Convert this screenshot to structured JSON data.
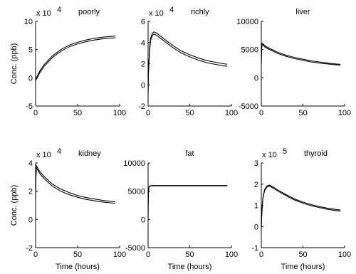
{
  "chart_data": [
    {
      "type": "line",
      "title": "poorly",
      "xlabel": "",
      "ylabel": "Conc. (ppb)",
      "multiplier_label": "x 10",
      "exponent": "4",
      "xlim": [
        0,
        100
      ],
      "ylim": [
        -5,
        10
      ],
      "xticks": [
        "0",
        "50",
        "100"
      ],
      "yticks": [
        "-5",
        "0",
        "5",
        "10"
      ],
      "x": [
        0,
        5,
        10,
        20,
        30,
        40,
        50,
        60,
        70,
        80,
        90,
        95
      ],
      "series": [
        {
          "values": [
            -0.3,
            1.2,
            2.3,
            3.9,
            5.0,
            5.8,
            6.3,
            6.7,
            7.0,
            7.2,
            7.35,
            7.4
          ]
        },
        {
          "values": [
            -0.5,
            0.9,
            2.0,
            3.6,
            4.7,
            5.5,
            6.0,
            6.4,
            6.7,
            6.9,
            7.05,
            7.1
          ]
        }
      ]
    },
    {
      "type": "line",
      "title": "richly",
      "xlabel": "",
      "ylabel": "",
      "multiplier_label": "x 10",
      "exponent": "4",
      "xlim": [
        0,
        100
      ],
      "ylim": [
        -2,
        6
      ],
      "xticks": [
        "0",
        "50",
        "100"
      ],
      "yticks": [
        "-2",
        "0",
        "2",
        "4",
        "6"
      ],
      "x": [
        0,
        0.3,
        1,
        2,
        3,
        5,
        7,
        10,
        15,
        20,
        30,
        40,
        50,
        60,
        70,
        80,
        90,
        95
      ],
      "series": [
        {
          "values": [
            -0.8,
            1.0,
            2.2,
            3.6,
            4.4,
            4.85,
            5.0,
            4.9,
            4.6,
            4.3,
            3.7,
            3.2,
            2.85,
            2.55,
            2.3,
            2.15,
            2.0,
            1.95
          ]
        },
        {
          "values": [
            -0.8,
            0.8,
            2.0,
            3.4,
            4.2,
            4.65,
            4.8,
            4.7,
            4.4,
            4.1,
            3.5,
            3.0,
            2.65,
            2.35,
            2.1,
            1.95,
            1.8,
            1.75
          ]
        }
      ]
    },
    {
      "type": "line",
      "title": "liver",
      "xlabel": "",
      "ylabel": "",
      "multiplier_label": "",
      "exponent": "",
      "xlim": [
        0,
        100
      ],
      "ylim": [
        -5000,
        10000
      ],
      "xticks": [
        "0",
        "50",
        "100"
      ],
      "yticks": [
        "-5000",
        "0",
        "5000",
        "10000"
      ],
      "x": [
        0,
        0.1,
        0.5,
        1,
        2,
        5,
        10,
        20,
        30,
        40,
        50,
        60,
        70,
        80,
        90,
        95
      ],
      "series": [
        {
          "values": [
            2500,
            3500,
            5500,
            6100,
            6000,
            5600,
            5200,
            4500,
            4000,
            3600,
            3300,
            3000,
            2800,
            2600,
            2450,
            2400
          ]
        },
        {
          "values": [
            2500,
            3300,
            5300,
            5900,
            5800,
            5400,
            5000,
            4300,
            3800,
            3400,
            3100,
            2800,
            2600,
            2450,
            2300,
            2250
          ]
        }
      ]
    },
    {
      "type": "line",
      "title": "kidney",
      "xlabel": "Time (hours)",
      "ylabel": "Conc. (ppb)",
      "multiplier_label": "x 10",
      "exponent": "4",
      "xlim": [
        0,
        100
      ],
      "ylim": [
        -2,
        4
      ],
      "xticks": [
        "0",
        "50",
        "100"
      ],
      "yticks": [
        "-2",
        "0",
        "2",
        "4"
      ],
      "x": [
        0,
        0.1,
        0.5,
        1,
        2,
        5,
        10,
        20,
        30,
        40,
        50,
        60,
        70,
        80,
        90,
        95
      ],
      "series": [
        {
          "values": [
            1.4,
            2.0,
            3.3,
            3.8,
            3.7,
            3.4,
            3.05,
            2.5,
            2.15,
            1.9,
            1.7,
            1.55,
            1.45,
            1.35,
            1.28,
            1.25
          ]
        },
        {
          "values": [
            1.4,
            1.9,
            3.1,
            3.65,
            3.55,
            3.25,
            2.9,
            2.35,
            2.0,
            1.75,
            1.57,
            1.42,
            1.32,
            1.23,
            1.17,
            1.15
          ]
        }
      ]
    },
    {
      "type": "line",
      "title": "fat",
      "xlabel": "Time (hours)",
      "ylabel": "",
      "multiplier_label": "",
      "exponent": "",
      "xlim": [
        0,
        100
      ],
      "ylim": [
        -5000,
        10000
      ],
      "xticks": [
        "0",
        "50",
        "100"
      ],
      "yticks": [
        "-5000",
        "0",
        "5000",
        "10000"
      ],
      "x": [
        0,
        0.1,
        0.5,
        1,
        2,
        5,
        10,
        50,
        95
      ],
      "series": [
        {
          "values": [
            0,
            2500,
            5000,
            5750,
            5950,
            6000,
            6000,
            6000,
            6000
          ]
        },
        {
          "values": [
            0,
            2400,
            4900,
            5700,
            5900,
            5950,
            5950,
            5950,
            5950
          ]
        }
      ]
    },
    {
      "type": "line",
      "title": "thyroid",
      "xlabel": "Time (hours)",
      "ylabel": "",
      "multiplier_label": "x 10",
      "exponent": "5",
      "xlim": [
        0,
        100
      ],
      "ylim": [
        -1,
        3
      ],
      "xticks": [
        "0",
        "50",
        "100"
      ],
      "yticks": [
        "-1",
        "0",
        "1",
        "2",
        "3"
      ],
      "x": [
        0,
        0.3,
        1,
        2,
        4,
        7,
        10,
        15,
        20,
        30,
        40,
        50,
        60,
        70,
        80,
        90,
        95
      ],
      "series": [
        {
          "values": [
            -0.1,
            0.4,
            0.9,
            1.4,
            1.75,
            1.92,
            1.95,
            1.85,
            1.72,
            1.5,
            1.3,
            1.15,
            1.03,
            0.94,
            0.86,
            0.8,
            0.78
          ]
        },
        {
          "values": [
            -0.1,
            0.35,
            0.85,
            1.35,
            1.7,
            1.87,
            1.9,
            1.8,
            1.67,
            1.45,
            1.25,
            1.1,
            0.98,
            0.89,
            0.81,
            0.75,
            0.73
          ]
        }
      ]
    }
  ]
}
